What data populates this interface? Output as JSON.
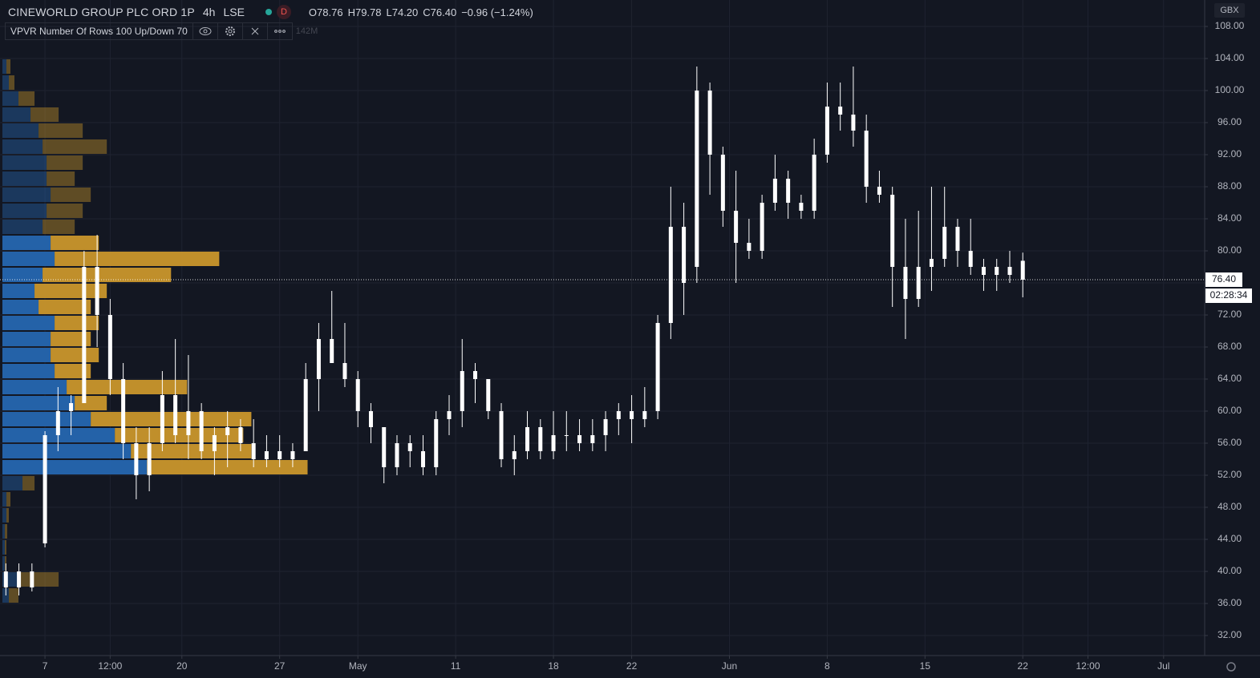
{
  "header": {
    "symbol": "CINEWORLD GROUP PLC ORD 1P",
    "interval": "4h",
    "exchange": "LSE",
    "badge": "D",
    "ohlc": [
      "O78.76",
      "H79.78",
      "L74.20",
      "C76.40"
    ],
    "change": "−0.96 (−1.24%)"
  },
  "indicator": {
    "label": "VPVR Number Of Rows 100 Up/Down 70",
    "volume": "142M"
  },
  "chart_data": {
    "type": "candlestick",
    "color": "#ffffff",
    "grid": true,
    "currency": "GBX",
    "last_price_label": "76.40",
    "countdown": "02:28:34",
    "x": [
      -6,
      -4,
      -2,
      0,
      2,
      4,
      6,
      8,
      10,
      12,
      14,
      16,
      18,
      20,
      22,
      24,
      26,
      28,
      30,
      32,
      34,
      36,
      38,
      40,
      42,
      44,
      46,
      48,
      50,
      52,
      54,
      56,
      58,
      60,
      62,
      64,
      66,
      68,
      70,
      72,
      74,
      76,
      78,
      80,
      82,
      84,
      86,
      88,
      90,
      92,
      94,
      96,
      98,
      100,
      102,
      104,
      106,
      108,
      110,
      112,
      114,
      116,
      118,
      120,
      122,
      124,
      126,
      128,
      130,
      132,
      134,
      136,
      138,
      140,
      142,
      144,
      146,
      148,
      150
    ],
    "open": [
      38,
      40,
      38,
      43.5,
      57,
      60,
      61,
      78,
      72,
      64,
      56,
      52,
      56,
      62,
      57,
      60,
      55,
      57,
      58,
      56,
      54,
      55,
      54,
      55,
      64,
      69,
      66,
      64,
      60,
      58,
      53,
      56,
      55,
      53,
      59,
      60,
      65,
      64,
      60,
      54,
      55,
      58,
      55,
      57,
      57,
      56,
      57,
      59,
      60,
      59,
      60,
      71,
      83,
      78,
      100,
      92,
      85,
      81,
      80,
      86,
      89,
      86,
      85,
      92,
      98,
      97,
      95,
      88,
      87,
      78,
      74,
      78,
      79,
      83,
      80,
      78,
      77,
      78,
      78.76
    ],
    "high": [
      41,
      41,
      41,
      57.5,
      63,
      62,
      80,
      82,
      74,
      66,
      58,
      58,
      65,
      69,
      67,
      61,
      58,
      60,
      59,
      59,
      57,
      57,
      56,
      66,
      71,
      75,
      71,
      65,
      61,
      58,
      57,
      57,
      57,
      60,
      62,
      69,
      66,
      64,
      61,
      57,
      60,
      59,
      60,
      60,
      59,
      59,
      60,
      61,
      62,
      63,
      72,
      88,
      86,
      103,
      101,
      93,
      90,
      84,
      87,
      92,
      90,
      87,
      94,
      101,
      101,
      103,
      97,
      90,
      88,
      84,
      85,
      88,
      88,
      84,
      84,
      79,
      79,
      80,
      79.78
    ],
    "low": [
      37,
      37,
      37.5,
      43,
      55,
      57,
      61,
      68,
      62,
      54,
      49,
      50,
      55,
      56,
      54,
      54,
      52,
      53,
      55,
      53,
      53,
      53,
      53,
      55,
      60,
      66,
      63,
      58,
      56,
      51,
      52,
      53,
      52,
      52,
      57,
      58,
      61,
      59,
      53,
      52,
      54,
      54,
      54,
      55,
      55,
      55,
      55,
      57,
      56,
      58,
      59,
      69,
      72,
      76,
      87,
      83,
      76,
      79,
      79,
      85,
      84,
      84,
      84,
      91,
      95,
      93,
      86,
      86,
      73,
      69,
      73,
      75,
      78,
      78,
      77,
      75,
      75,
      76,
      74.2
    ],
    "close": [
      40,
      38,
      40,
      57,
      60,
      61,
      78,
      72,
      64,
      56,
      52,
      56,
      62,
      57,
      60,
      55,
      57,
      58,
      56,
      54,
      55,
      54,
      55,
      64,
      69,
      66,
      64,
      60,
      58,
      53,
      56,
      55,
      53,
      59,
      60,
      65,
      64,
      60,
      54,
      55,
      58,
      55,
      57,
      57,
      56,
      57,
      59,
      60,
      59,
      60,
      71,
      83,
      76,
      100,
      92,
      85,
      81,
      80,
      86,
      89,
      86,
      85,
      92,
      98,
      97,
      95,
      88,
      87,
      78,
      74,
      78,
      79,
      83,
      80,
      78,
      77,
      78,
      77,
      76.4
    ],
    "xlim": [
      -6.9,
      177.9
    ],
    "xticks": [
      {
        "value": 0,
        "label": "7"
      },
      {
        "value": 10,
        "label": "12:00"
      },
      {
        "value": 21,
        "label": "20"
      },
      {
        "value": 36,
        "label": "27"
      },
      {
        "value": 48,
        "label": "May"
      },
      {
        "value": 63,
        "label": "11"
      },
      {
        "value": 78,
        "label": "18"
      },
      {
        "value": 90,
        "label": "22"
      },
      {
        "value": 105,
        "label": "Jun"
      },
      {
        "value": 120,
        "label": "8"
      },
      {
        "value": 135,
        "label": "15"
      },
      {
        "value": 150,
        "label": "22"
      },
      {
        "value": 160,
        "label": "12:00"
      },
      {
        "value": 171.6,
        "label": "Jul"
      }
    ],
    "ylim": [
      29.5,
      111.3
    ],
    "yticks": [
      {
        "value": 32,
        "label": "32.00"
      },
      {
        "value": 36,
        "label": "36.00"
      },
      {
        "value": 40,
        "label": "40.00"
      },
      {
        "value": 44,
        "label": "44.00"
      },
      {
        "value": 48,
        "label": "48.00"
      },
      {
        "value": 52,
        "label": "52.00"
      },
      {
        "value": 56,
        "label": "56.00"
      },
      {
        "value": 60,
        "label": "60.00"
      },
      {
        "value": 64,
        "label": "64.00"
      },
      {
        "value": 68,
        "label": "68.00"
      },
      {
        "value": 72,
        "label": "72.00"
      },
      {
        "value": 76,
        "label": "76.00"
      },
      {
        "value": 80,
        "label": "80.00"
      },
      {
        "value": 84,
        "label": "84.00"
      },
      {
        "value": 88,
        "label": "88.00"
      },
      {
        "value": 92,
        "label": "92.00"
      },
      {
        "value": 96,
        "label": "96.00"
      },
      {
        "value": 100,
        "label": "100.00"
      },
      {
        "value": 104,
        "label": "104.00"
      },
      {
        "value": 108,
        "label": "108.00"
      }
    ],
    "volume_profile": {
      "up_color": "#2566b0",
      "down_color": "#c9962c",
      "row_height": 2,
      "xlim": [
        0,
        1500
      ],
      "value_area": [
        52,
        82
      ],
      "prices": [
        37,
        39,
        41,
        43,
        45,
        47,
        49,
        51,
        53,
        55,
        57,
        59,
        61,
        63,
        65,
        67,
        69,
        71,
        73,
        75,
        77,
        79,
        81,
        83,
        85,
        87,
        89,
        91,
        93,
        95,
        97,
        99,
        101,
        103
      ],
      "up": [
        8,
        20,
        3,
        3,
        3,
        5,
        5,
        25,
        180,
        160,
        140,
        110,
        90,
        80,
        65,
        60,
        60,
        65,
        45,
        40,
        50,
        65,
        60,
        50,
        55,
        60,
        55,
        55,
        50,
        45,
        35,
        20,
        8,
        5
      ],
      "down": [
        12,
        50,
        2,
        2,
        3,
        3,
        5,
        15,
        200,
        150,
        160,
        200,
        40,
        150,
        45,
        60,
        50,
        55,
        65,
        90,
        160,
        205,
        60,
        40,
        45,
        50,
        35,
        45,
        80,
        55,
        35,
        20,
        7,
        5
      ]
    }
  }
}
